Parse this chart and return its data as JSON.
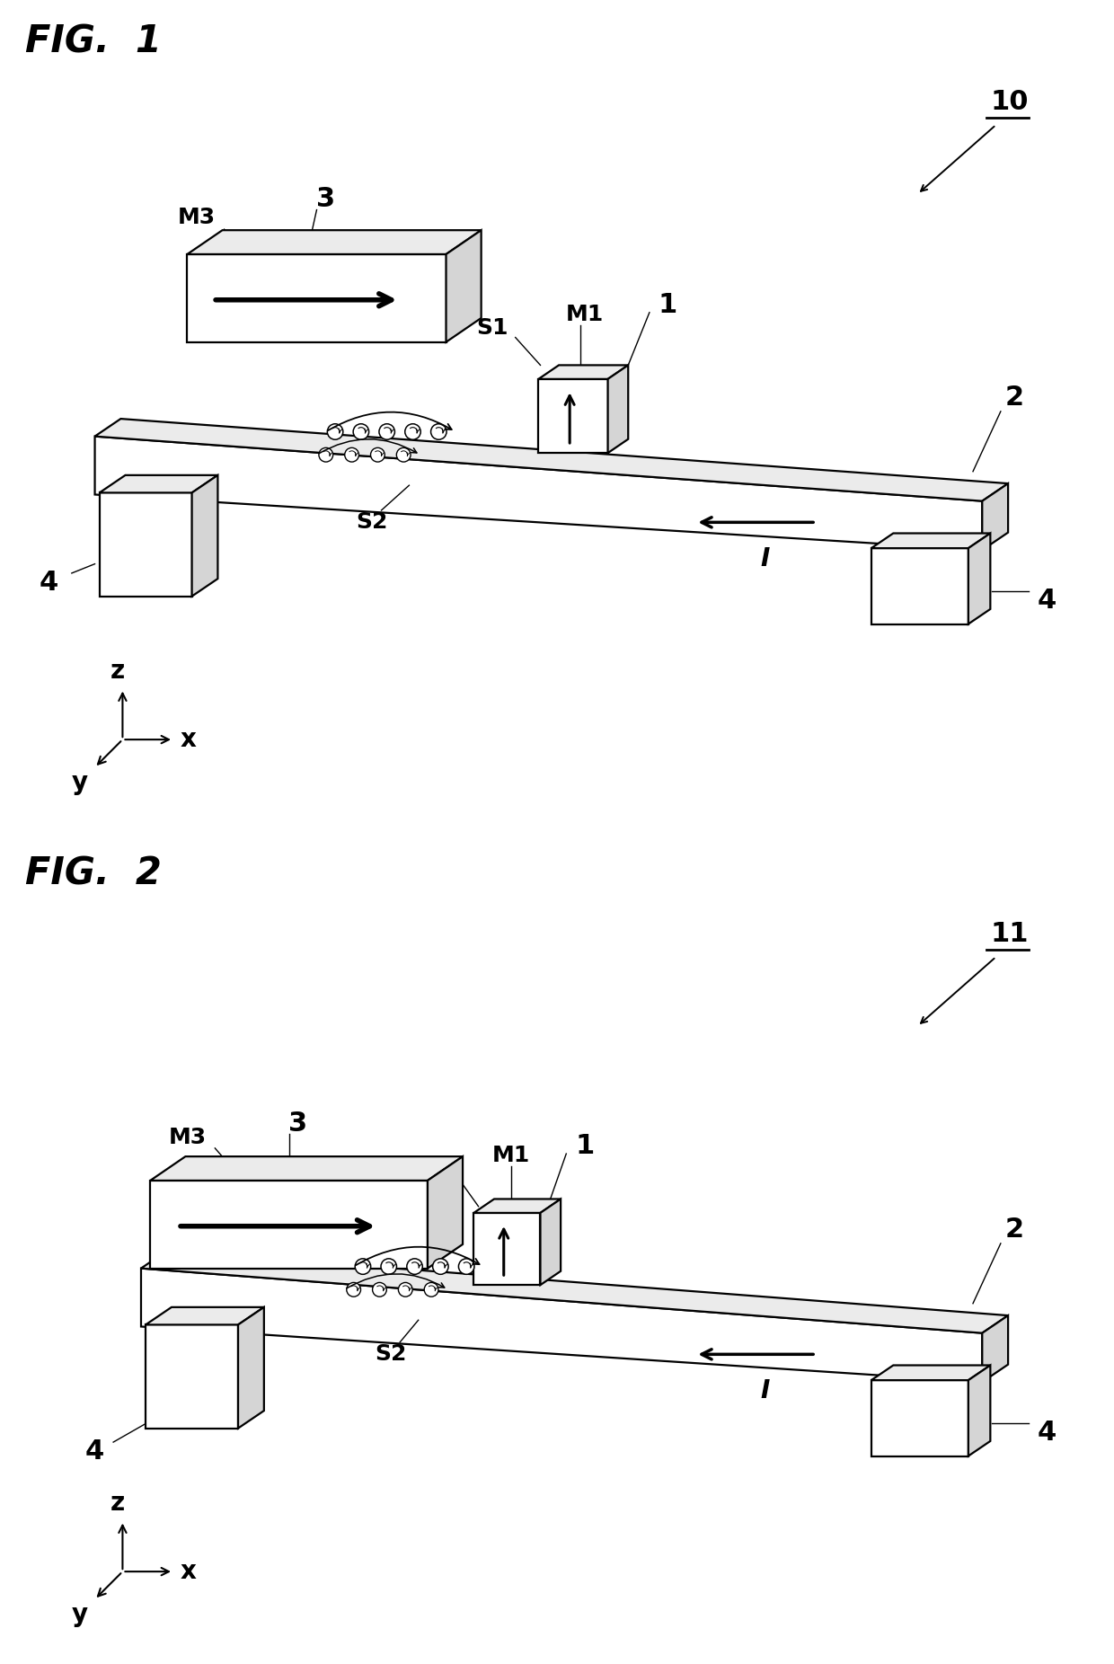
{
  "fig1_title": "FIG.  1",
  "fig2_title": "FIG.  2",
  "fig1_label": "10",
  "fig2_label": "11",
  "background_color": "#ffffff",
  "line_color": "#000000",
  "fig_title_fontsize": 30,
  "label_fontsize": 22,
  "small_label_fontsize": 18,
  "axis_label_fontsize": 20,
  "lw": 1.6,
  "face_color": "#ffffff",
  "top_color": "#ebebeb",
  "right_color": "#d5d5d5"
}
